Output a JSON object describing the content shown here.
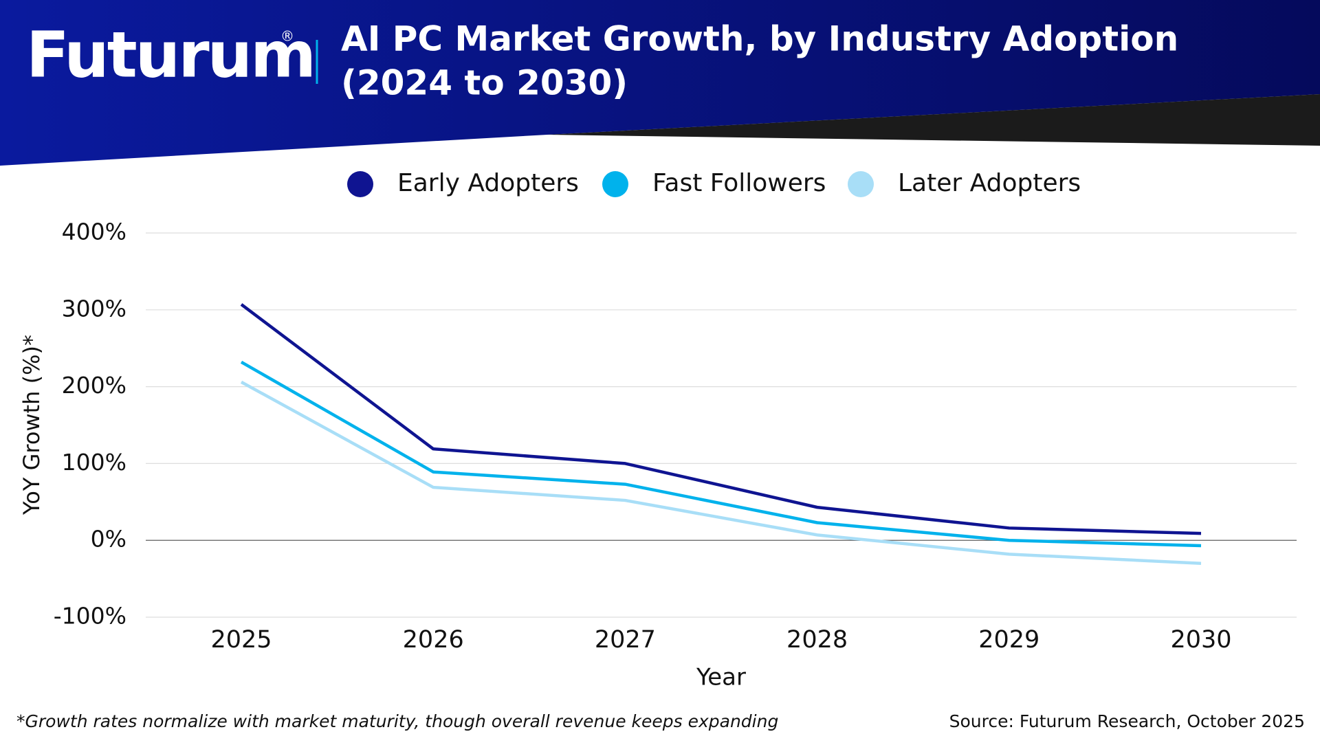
{
  "header": {
    "logo": "Futurum",
    "logo_mark": "®"
  },
  "chart_data": {
    "type": "line",
    "title": "AI PC Market Growth, by Industry Adoption",
    "subtitle": "(2024 to 2030)",
    "x_label": "Year",
    "y_label": "YoY Growth (%)*",
    "categories": [
      "2025",
      "2026",
      "2027",
      "2028",
      "2029",
      "2030"
    ],
    "series": [
      {
        "name": "Early Adopters",
        "color": "#0f1491",
        "values": [
          307,
          119,
          100,
          43,
          16,
          9
        ]
      },
      {
        "name": "Fast Followers",
        "color": "#00b2ec",
        "values": [
          232,
          89,
          73,
          23,
          0,
          -7
        ]
      },
      {
        "name": "Later Adopters",
        "color": "#a8def7",
        "values": [
          206,
          69,
          52,
          7,
          -18,
          -30
        ]
      }
    ],
    "ylim": [
      -100,
      400
    ],
    "yticks": [
      {
        "value": -100,
        "label": "-100%"
      },
      {
        "value": 0,
        "label": "0%"
      },
      {
        "value": 100,
        "label": "100%"
      },
      {
        "value": 200,
        "label": "200%"
      },
      {
        "value": 300,
        "label": "300%"
      },
      {
        "value": 400,
        "label": "400%"
      }
    ],
    "grid": true,
    "legend": "top",
    "footnote": "*Growth rates normalize with market maturity, though overall revenue keeps expanding",
    "source": "Source: Futurum Research, October 2025"
  }
}
